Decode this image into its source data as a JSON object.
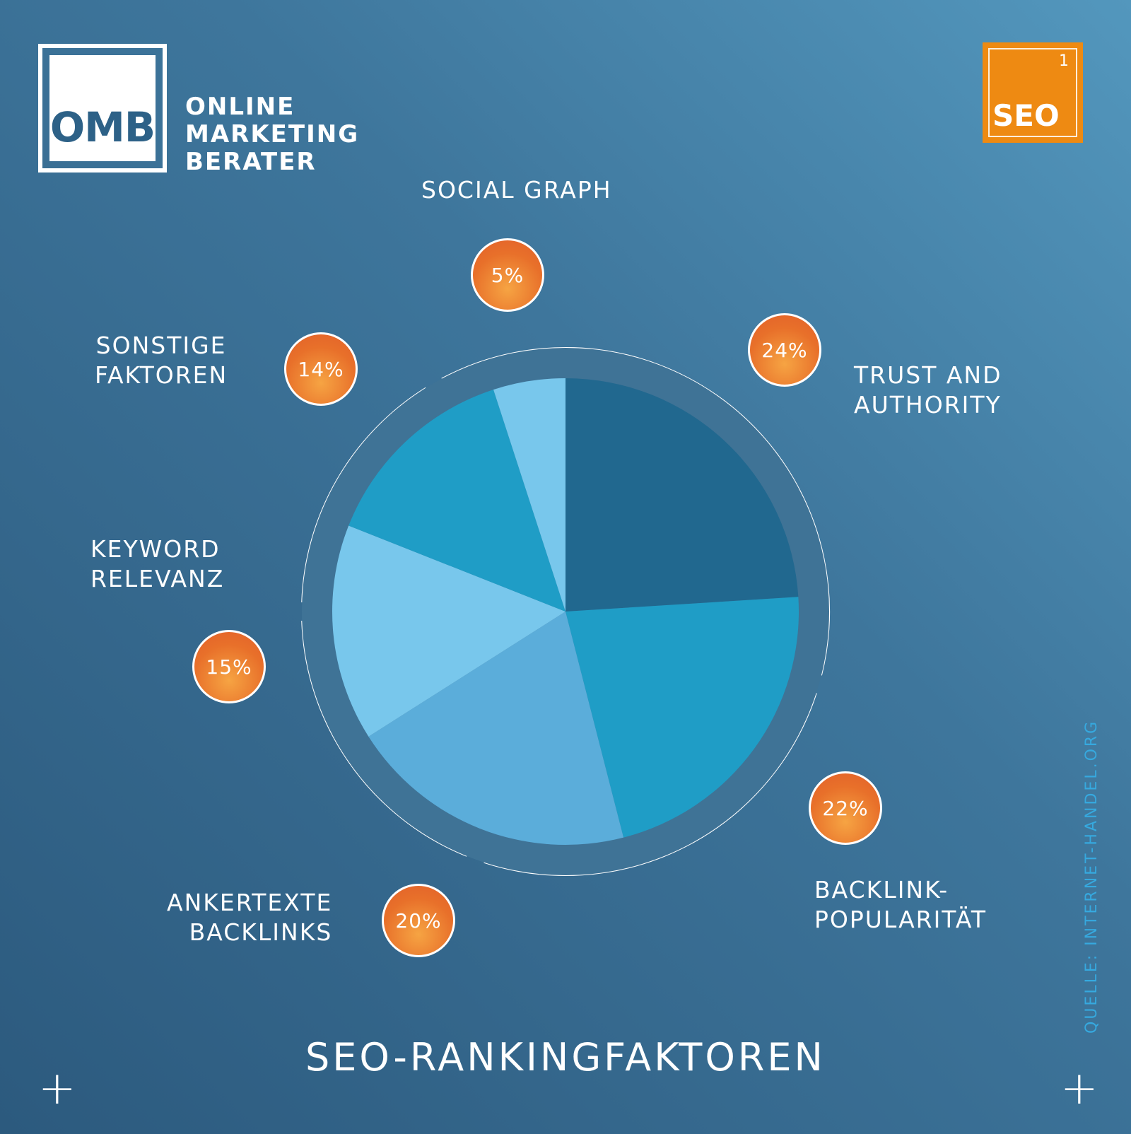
{
  "logo": {
    "mark": "OMB",
    "lines": [
      "ONLINE",
      "MARKETING",
      "BERATER"
    ]
  },
  "seo_badge": {
    "number": "1",
    "text": "SEO"
  },
  "title": "SEO-RANKINGFAKTOREN",
  "source": "QUELLE: INTERNET-HANDEL.ORG",
  "colors": {
    "trust": "#21688f",
    "backlink": "#1f9dc6",
    "anker": "#5badda",
    "keyword": "#78c7ec",
    "sonstige": "#1f9dc6",
    "social": "#78c7ec",
    "badge": "#e8702a"
  },
  "chart_data": {
    "type": "pie",
    "title": "SEO-RANKINGFAKTOREN",
    "slices": [
      {
        "label_lines": [
          "TRUST AND",
          "AUTHORITY"
        ],
        "value": 24,
        "display": "24%",
        "color": "#21688f"
      },
      {
        "label_lines": [
          "BACKLINK-",
          "POPULARITÄT"
        ],
        "value": 22,
        "display": "22%",
        "color": "#1f9dc6"
      },
      {
        "label_lines": [
          "ANKERTEXTE",
          "BACKLINKS"
        ],
        "value": 20,
        "display": "20%",
        "color": "#5badda"
      },
      {
        "label_lines": [
          "KEYWORD",
          "RELEVANZ"
        ],
        "value": 15,
        "display": "15%",
        "color": "#78c7ec"
      },
      {
        "label_lines": [
          "SONSTIGE",
          "FAKTOREN"
        ],
        "value": 14,
        "display": "14%",
        "color": "#1f9dc6"
      },
      {
        "label_lines": [
          "SOCIAL GRAPH"
        ],
        "value": 5,
        "display": "5%",
        "color": "#78c7ec"
      }
    ]
  }
}
